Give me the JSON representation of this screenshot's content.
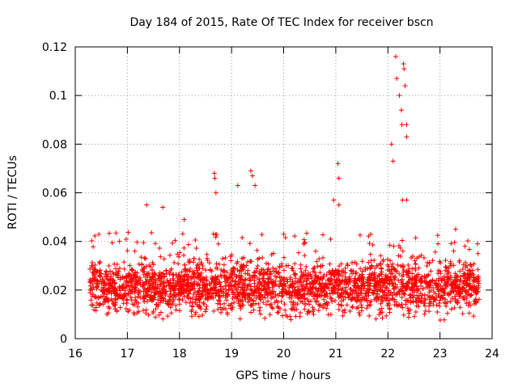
{
  "chart_data": {
    "type": "scatter",
    "title": "Day 184 of 2015, Rate Of TEC Index for receiver bscn",
    "xlabel": "GPS time / hours",
    "ylabel": "ROTI / TECUs",
    "xlim": [
      16,
      24
    ],
    "ylim": [
      0,
      0.12
    ],
    "x_ticks": [
      16,
      17,
      18,
      19,
      20,
      21,
      22,
      23,
      24
    ],
    "x_tick_labels": [
      "16",
      "17",
      "18",
      "19",
      "20",
      "21",
      "22",
      "23",
      "24"
    ],
    "y_ticks": [
      0,
      0.02,
      0.04,
      0.06,
      0.08,
      0.1,
      0.12
    ],
    "y_tick_labels": [
      "0",
      "0.02",
      "0.04",
      "0.06",
      "0.08",
      "0.1",
      "0.12"
    ],
    "grid": true,
    "marker": "+",
    "color": "#ff0000",
    "series": [
      {
        "name": "ROTI",
        "x_range": [
          16.28,
          23.75
        ],
        "baseline_range": [
          0.006,
          0.036
        ],
        "notable_points": [
          {
            "x": 17.37,
            "y": 0.055
          },
          {
            "x": 17.68,
            "y": 0.054
          },
          {
            "x": 18.09,
            "y": 0.049
          },
          {
            "x": 18.67,
            "y": 0.068
          },
          {
            "x": 18.68,
            "y": 0.066
          },
          {
            "x": 18.7,
            "y": 0.06
          },
          {
            "x": 19.12,
            "y": 0.063
          },
          {
            "x": 19.37,
            "y": 0.069
          },
          {
            "x": 19.4,
            "y": 0.067
          },
          {
            "x": 19.45,
            "y": 0.063
          },
          {
            "x": 20.0,
            "y": 0.043
          },
          {
            "x": 20.96,
            "y": 0.057
          },
          {
            "x": 21.04,
            "y": 0.072
          },
          {
            "x": 21.06,
            "y": 0.066
          },
          {
            "x": 21.06,
            "y": 0.055
          },
          {
            "x": 22.07,
            "y": 0.08
          },
          {
            "x": 22.1,
            "y": 0.073
          },
          {
            "x": 22.15,
            "y": 0.116
          },
          {
            "x": 22.17,
            "y": 0.107
          },
          {
            "x": 22.22,
            "y": 0.1
          },
          {
            "x": 22.26,
            "y": 0.094
          },
          {
            "x": 22.27,
            "y": 0.088
          },
          {
            "x": 22.3,
            "y": 0.113
          },
          {
            "x": 22.31,
            "y": 0.111
          },
          {
            "x": 22.33,
            "y": 0.104
          },
          {
            "x": 22.36,
            "y": 0.088
          },
          {
            "x": 22.36,
            "y": 0.083
          },
          {
            "x": 22.36,
            "y": 0.057
          },
          {
            "x": 22.28,
            "y": 0.057
          },
          {
            "x": 23.3,
            "y": 0.045
          },
          {
            "x": 23.48,
            "y": 0.038
          },
          {
            "x": 23.72,
            "y": 0.039
          }
        ]
      }
    ]
  }
}
